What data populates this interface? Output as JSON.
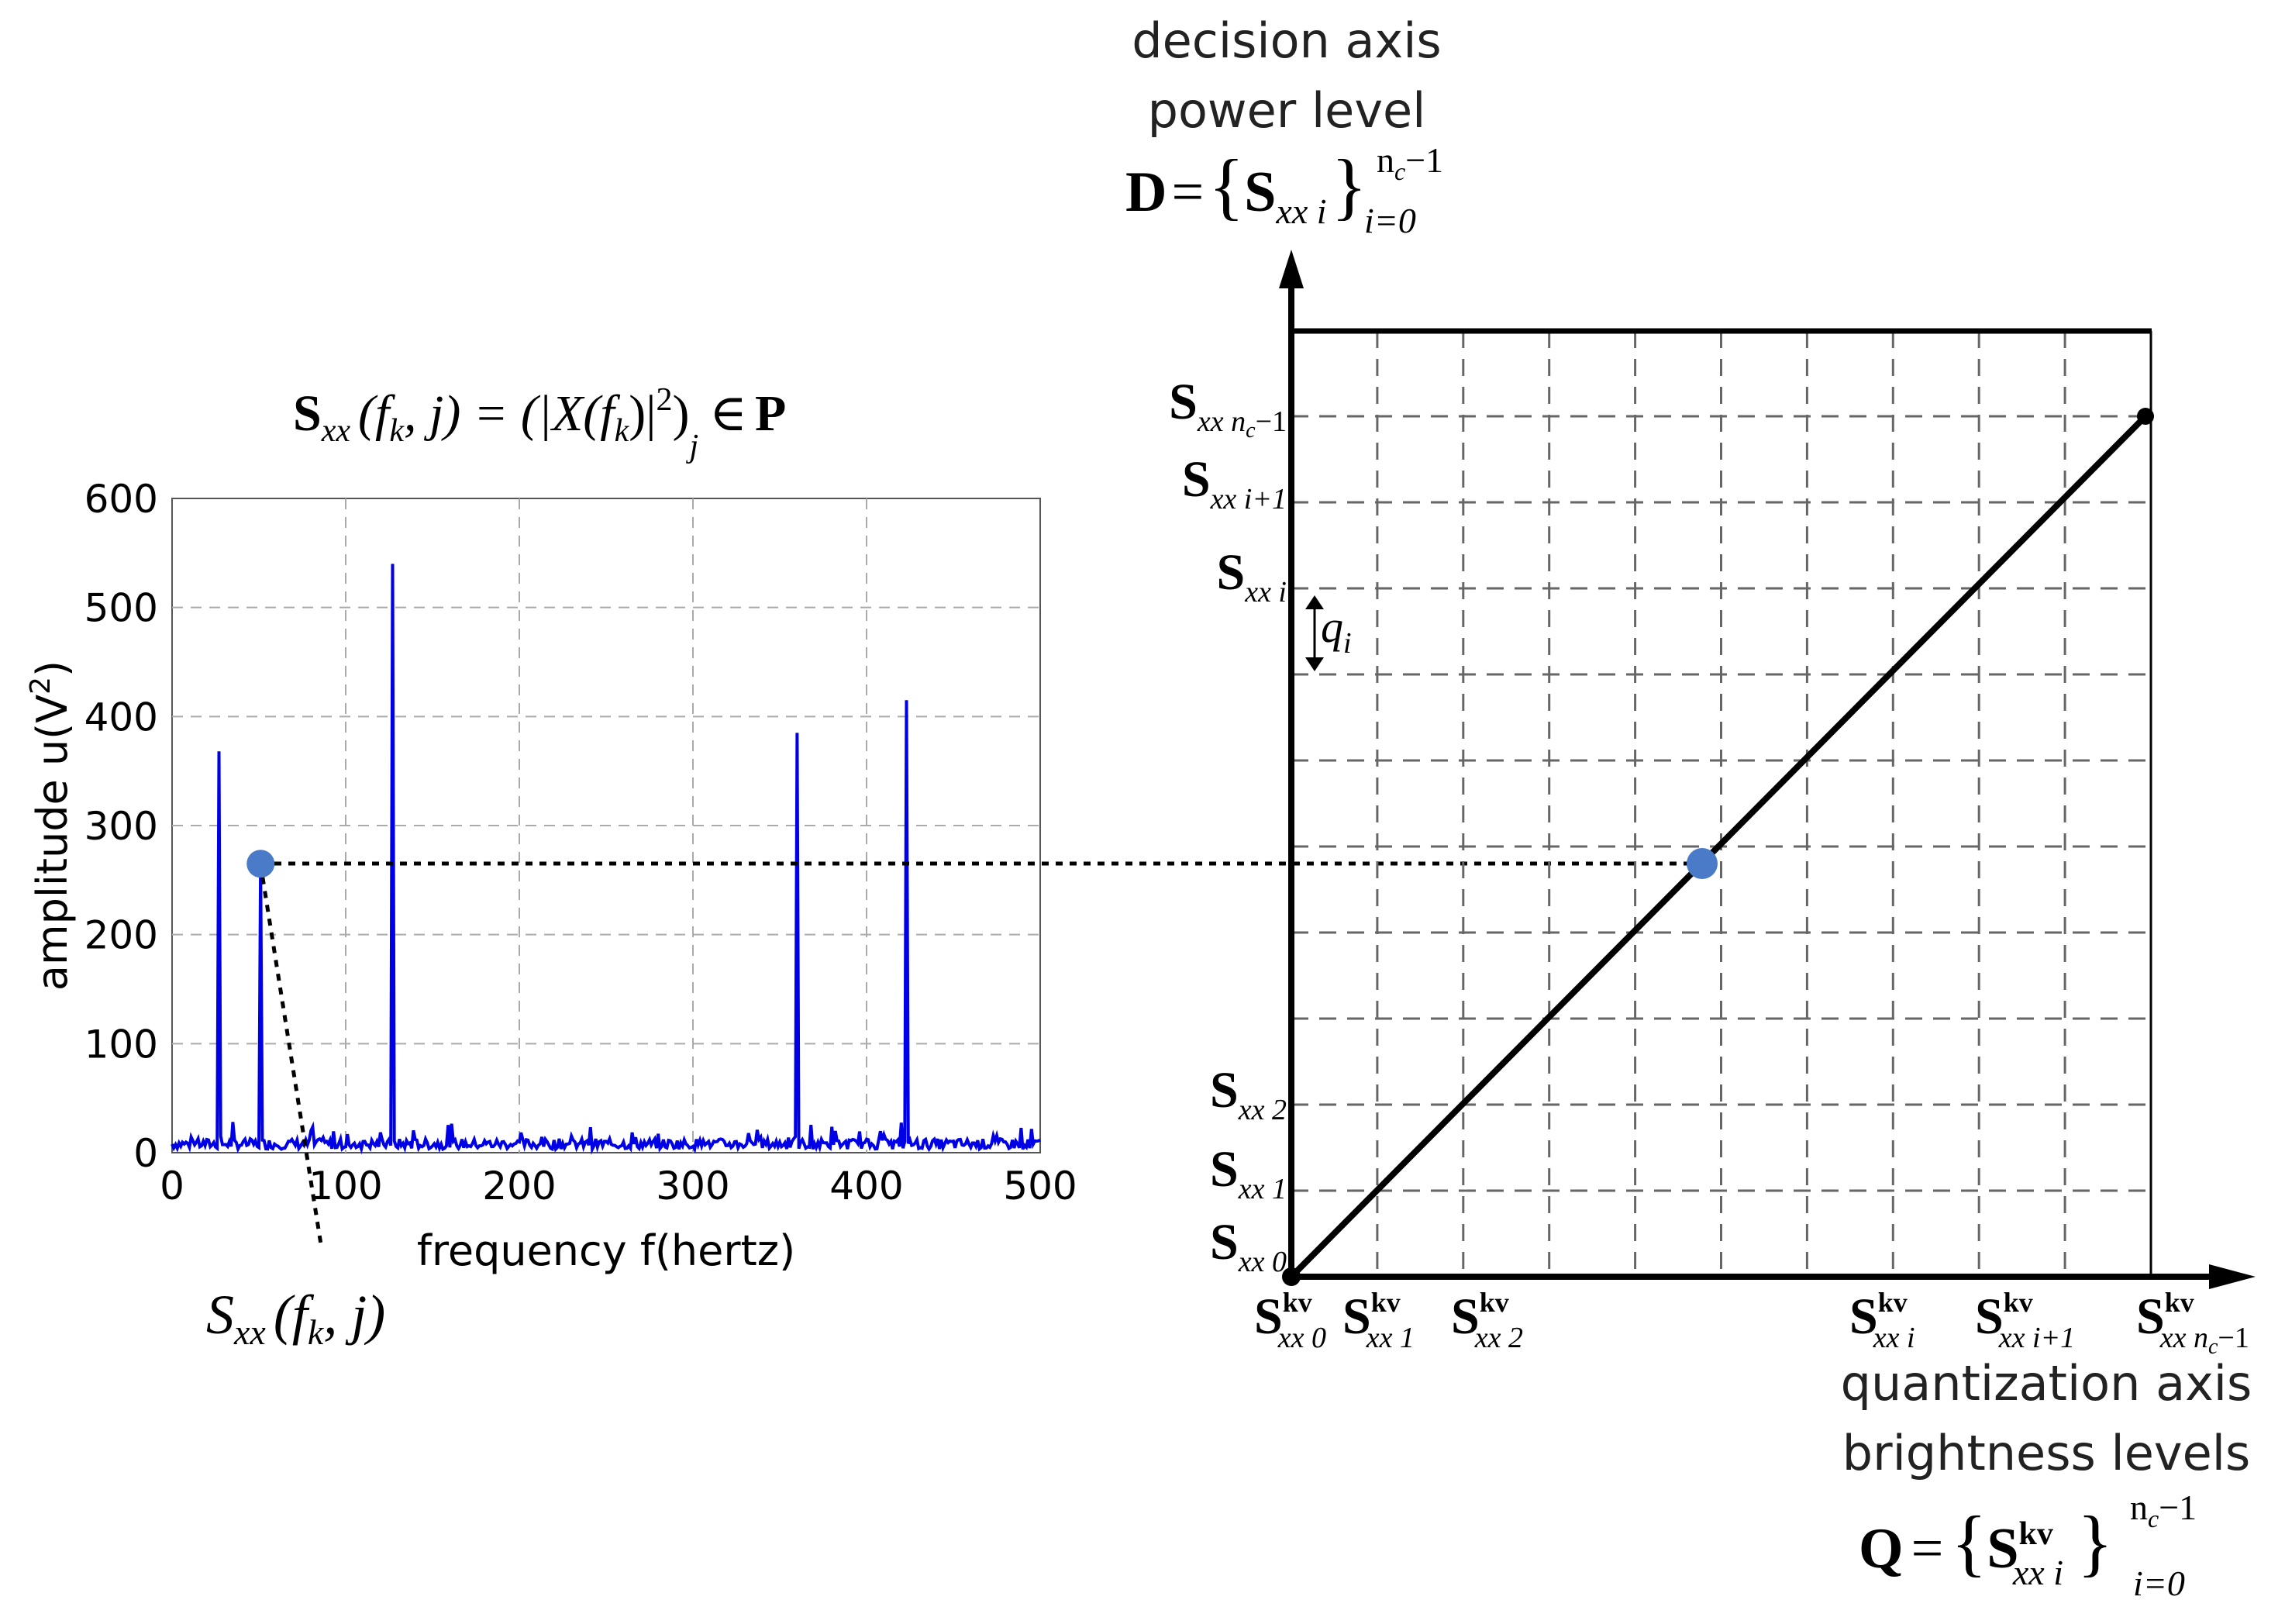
{
  "spectrum_formula": {
    "lhs_S": "S",
    "lhs_sub": "xx",
    "lhs_args": "(f",
    "lhs_args_k": "k",
    "lhs_args_end": ", j) = (",
    "rhs_X": "|X(f",
    "rhs_X_k": "k",
    "rhs_X_end": ")|",
    "rhs_sq": "2",
    "rhs_close": ")",
    "rhs_j": "j",
    "rhs_in": "∈",
    "rhs_P": "P"
  },
  "spectrum_point_label": {
    "S": "S",
    "sub": "xx",
    "args": "(f",
    "k": "k",
    "end": ", j)"
  },
  "decision_axis": {
    "line1": "decision axis",
    "line2": "power level",
    "set_D": "D",
    "set_eq": "=",
    "set_open": "{",
    "set_S": "S",
    "set_sub": "xx i",
    "set_close": "}",
    "set_upper": "n",
    "set_upper_c": "c",
    "set_upper_tail": "−1",
    "set_lower": "i=0"
  },
  "quantization_axis": {
    "line1": "quantization axis",
    "line2": "brightness levels",
    "set_Q": "Q",
    "set_eq": "=",
    "set_open": "{",
    "set_S": "S",
    "set_sup": "kv",
    "set_sub": "xx i",
    "set_close": "}",
    "set_upper": "n",
    "set_upper_c": "c",
    "set_upper_tail": "−1",
    "set_lower": "i=0"
  },
  "decision_labels": [
    {
      "S": "S",
      "sub": "xx n",
      "subc": "c",
      "tail": "−1"
    },
    {
      "S": "S",
      "sub": "xx i+1",
      "subc": "",
      "tail": ""
    },
    {
      "S": "S",
      "sub": "xx i",
      "subc": "",
      "tail": ""
    },
    {
      "S": "S",
      "sub": "xx 2",
      "subc": "",
      "tail": ""
    },
    {
      "S": "S",
      "sub": "xx 1",
      "subc": "",
      "tail": ""
    },
    {
      "S": "S",
      "sub": "xx 0",
      "subc": "",
      "tail": ""
    }
  ],
  "quant_labels": [
    {
      "S": "S",
      "sup": "kv",
      "sub": "xx 0",
      "subc": "",
      "tail": ""
    },
    {
      "S": "S",
      "sup": "kv",
      "sub": "xx 1",
      "subc": "",
      "tail": ""
    },
    {
      "S": "S",
      "sup": "kv",
      "sub": "xx 2",
      "subc": "",
      "tail": ""
    },
    {
      "S": "S",
      "sup": "kv",
      "sub": "xx i",
      "subc": "",
      "tail": ""
    },
    {
      "S": "S",
      "sup": "kv",
      "sub": "xx i+1",
      "subc": "",
      "tail": ""
    },
    {
      "S": "S",
      "sup": "kv",
      "sub": "xx n",
      "subc": "c",
      "tail": "−1"
    }
  ],
  "step_label": {
    "q": "q",
    "sub": "i"
  },
  "colors": {
    "spectrum": "#0000e6",
    "marker": "#4a7bc8",
    "axis": "#000000",
    "grid": "#888888"
  },
  "chart_data": {
    "type": "line",
    "xlabel": "frequency f(hertz)",
    "ylabel": "amplitude u(V",
    "ylabel_sup": "2",
    "ylabel_end": ")",
    "xlim": [
      0,
      500
    ],
    "ylim": [
      0,
      600
    ],
    "xticks": [
      "0",
      "100",
      "200",
      "300",
      "400",
      "500"
    ],
    "yticks": [
      "0",
      "100",
      "200",
      "300",
      "400",
      "500",
      "600"
    ],
    "grid": true,
    "noise_level": 8,
    "peaks": [
      {
        "x": 27,
        "y": 368
      },
      {
        "x": 51,
        "y": 265
      },
      {
        "x": 127,
        "y": 540
      },
      {
        "x": 360,
        "y": 385
      },
      {
        "x": 423,
        "y": 415
      }
    ],
    "highlight": {
      "x": 51,
      "y": 265
    }
  }
}
